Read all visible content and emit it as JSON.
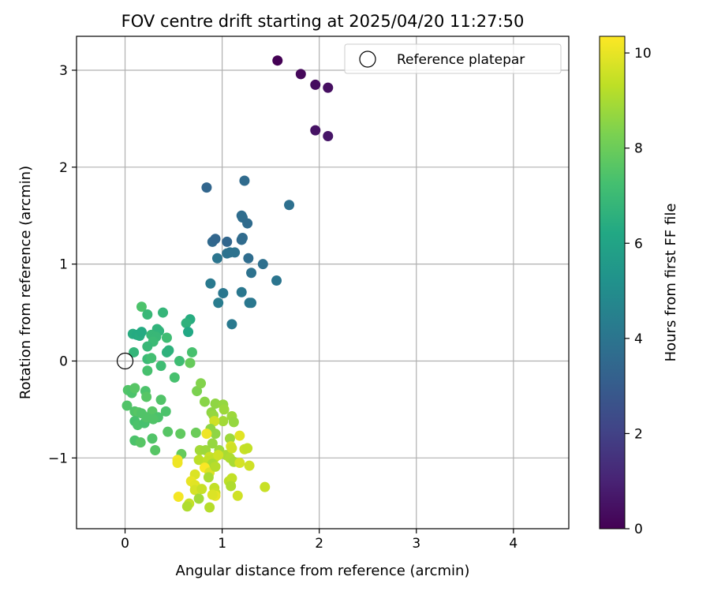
{
  "chart_data": {
    "type": "scatter",
    "title": "FOV centre drift starting at 2025/04/20 11:27:50",
    "xlabel": "Angular distance from reference (arcmin)",
    "ylabel": "Rotation from reference (arcmin)",
    "xlim": [
      -0.5,
      4.57
    ],
    "ylim": [
      -1.73,
      3.35
    ],
    "xticks": [
      0,
      1,
      2,
      3,
      4
    ],
    "yticks": [
      -1,
      0,
      1,
      2,
      3
    ],
    "xtick_labels": [
      "0",
      "1",
      "2",
      "3",
      "4"
    ],
    "ytick_labels": [
      "−1",
      "0",
      "1",
      "2",
      "3"
    ],
    "grid": true,
    "legend": {
      "placement": "top-right",
      "entries": [
        "Reference platepar"
      ]
    },
    "reference_point": {
      "x": 0,
      "y": 0,
      "label": "Reference platepar"
    },
    "colorbar": {
      "label": "Hours from first FF file",
      "colormap": "viridis",
      "range": [
        0,
        10.35
      ],
      "ticks": [
        0,
        2,
        4,
        6,
        8,
        10
      ],
      "tick_labels": [
        "0",
        "2",
        "4",
        "6",
        "8",
        "10"
      ]
    },
    "points": [
      {
        "x": 1.57,
        "y": 3.1,
        "c": 0.0
      },
      {
        "x": 1.81,
        "y": 2.96,
        "c": 0.2
      },
      {
        "x": 1.96,
        "y": 2.85,
        "c": 0.3
      },
      {
        "x": 2.09,
        "y": 2.82,
        "c": 0.4
      },
      {
        "x": 1.96,
        "y": 2.38,
        "c": 0.5
      },
      {
        "x": 2.09,
        "y": 2.32,
        "c": 0.6
      },
      {
        "x": 0.84,
        "y": 1.79,
        "c": 3.4
      },
      {
        "x": 1.23,
        "y": 1.86,
        "c": 3.6
      },
      {
        "x": 1.69,
        "y": 1.61,
        "c": 3.8
      },
      {
        "x": 1.2,
        "y": 1.5,
        "c": 3.7
      },
      {
        "x": 1.21,
        "y": 1.48,
        "c": 3.7
      },
      {
        "x": 1.26,
        "y": 1.42,
        "c": 3.6
      },
      {
        "x": 0.9,
        "y": 1.23,
        "c": 3.5
      },
      {
        "x": 0.93,
        "y": 1.26,
        "c": 3.4
      },
      {
        "x": 1.05,
        "y": 1.23,
        "c": 3.4
      },
      {
        "x": 1.2,
        "y": 1.25,
        "c": 3.6
      },
      {
        "x": 1.21,
        "y": 1.27,
        "c": 3.6
      },
      {
        "x": 0.95,
        "y": 1.06,
        "c": 4.0
      },
      {
        "x": 1.05,
        "y": 1.11,
        "c": 3.9
      },
      {
        "x": 1.08,
        "y": 1.12,
        "c": 3.9
      },
      {
        "x": 1.13,
        "y": 1.12,
        "c": 3.9
      },
      {
        "x": 1.27,
        "y": 1.06,
        "c": 3.7
      },
      {
        "x": 1.42,
        "y": 1.0,
        "c": 3.8
      },
      {
        "x": 1.3,
        "y": 0.91,
        "c": 3.9
      },
      {
        "x": 0.88,
        "y": 0.8,
        "c": 4.2
      },
      {
        "x": 1.01,
        "y": 0.7,
        "c": 4.1
      },
      {
        "x": 1.2,
        "y": 0.71,
        "c": 4.1
      },
      {
        "x": 1.56,
        "y": 0.83,
        "c": 4.0
      },
      {
        "x": 0.96,
        "y": 0.6,
        "c": 4.3
      },
      {
        "x": 1.28,
        "y": 0.6,
        "c": 4.1
      },
      {
        "x": 1.3,
        "y": 0.6,
        "c": 4.1
      },
      {
        "x": 1.1,
        "y": 0.38,
        "c": 4.2
      },
      {
        "x": 0.17,
        "y": 0.56,
        "c": 7.4
      },
      {
        "x": 0.39,
        "y": 0.5,
        "c": 6.8
      },
      {
        "x": 0.23,
        "y": 0.48,
        "c": 6.9
      },
      {
        "x": 0.67,
        "y": 0.43,
        "c": 6.4
      },
      {
        "x": 0.63,
        "y": 0.39,
        "c": 6.6
      },
      {
        "x": 0.33,
        "y": 0.33,
        "c": 6.7
      },
      {
        "x": 0.35,
        "y": 0.31,
        "c": 6.7
      },
      {
        "x": 0.65,
        "y": 0.3,
        "c": 6.2
      },
      {
        "x": 0.08,
        "y": 0.28,
        "c": 6.4
      },
      {
        "x": 0.12,
        "y": 0.27,
        "c": 6.3
      },
      {
        "x": 0.15,
        "y": 0.26,
        "c": 6.4
      },
      {
        "x": 0.17,
        "y": 0.3,
        "c": 6.3
      },
      {
        "x": 0.27,
        "y": 0.27,
        "c": 6.9
      },
      {
        "x": 0.32,
        "y": 0.25,
        "c": 6.9
      },
      {
        "x": 0.29,
        "y": 0.2,
        "c": 7.0
      },
      {
        "x": 0.43,
        "y": 0.24,
        "c": 7.1
      },
      {
        "x": 0.23,
        "y": 0.15,
        "c": 6.9
      },
      {
        "x": 0.43,
        "y": 0.09,
        "c": 6.6
      },
      {
        "x": 0.45,
        "y": 0.11,
        "c": 6.6
      },
      {
        "x": 0.69,
        "y": 0.09,
        "c": 7.3
      },
      {
        "x": 0.09,
        "y": 0.09,
        "c": 6.8
      },
      {
        "x": 0.23,
        "y": 0.02,
        "c": 7.0
      },
      {
        "x": 0.27,
        "y": 0.03,
        "c": 7.2
      },
      {
        "x": 0.56,
        "y": 0.0,
        "c": 7.1
      },
      {
        "x": 0.67,
        "y": -0.02,
        "c": 7.9
      },
      {
        "x": 0.37,
        "y": -0.05,
        "c": 7.1
      },
      {
        "x": 0.23,
        "y": -0.1,
        "c": 7.3
      },
      {
        "x": 0.51,
        "y": -0.17,
        "c": 7.3
      },
      {
        "x": 0.03,
        "y": -0.3,
        "c": 7.5
      },
      {
        "x": 0.07,
        "y": -0.33,
        "c": 7.4
      },
      {
        "x": 0.1,
        "y": -0.28,
        "c": 7.6
      },
      {
        "x": 0.21,
        "y": -0.31,
        "c": 7.4
      },
      {
        "x": 0.22,
        "y": -0.37,
        "c": 7.6
      },
      {
        "x": 0.37,
        "y": -0.4,
        "c": 7.5
      },
      {
        "x": 0.02,
        "y": -0.46,
        "c": 7.5
      },
      {
        "x": 0.1,
        "y": -0.52,
        "c": 7.5
      },
      {
        "x": 0.14,
        "y": -0.53,
        "c": 7.6
      },
      {
        "x": 0.17,
        "y": -0.54,
        "c": 7.5
      },
      {
        "x": 0.28,
        "y": -0.52,
        "c": 7.6
      },
      {
        "x": 0.34,
        "y": -0.58,
        "c": 7.4
      },
      {
        "x": 0.42,
        "y": -0.52,
        "c": 7.4
      },
      {
        "x": 0.1,
        "y": -0.62,
        "c": 7.3
      },
      {
        "x": 0.13,
        "y": -0.66,
        "c": 7.4
      },
      {
        "x": 0.2,
        "y": -0.64,
        "c": 7.3
      },
      {
        "x": 0.22,
        "y": -0.58,
        "c": 7.5
      },
      {
        "x": 0.29,
        "y": -0.6,
        "c": 7.5
      },
      {
        "x": 0.44,
        "y": -0.73,
        "c": 7.6
      },
      {
        "x": 0.1,
        "y": -0.82,
        "c": 7.4
      },
      {
        "x": 0.16,
        "y": -0.84,
        "c": 7.6
      },
      {
        "x": 0.28,
        "y": -0.8,
        "c": 7.5
      },
      {
        "x": 0.31,
        "y": -0.92,
        "c": 7.6
      },
      {
        "x": 0.57,
        "y": -0.75,
        "c": 7.8
      },
      {
        "x": 0.73,
        "y": -0.74,
        "c": 8.0
      },
      {
        "x": 0.58,
        "y": -0.96,
        "c": 7.9
      },
      {
        "x": 0.74,
        "y": -0.31,
        "c": 8.3
      },
      {
        "x": 0.78,
        "y": -0.23,
        "c": 8.4
      },
      {
        "x": 0.82,
        "y": -0.42,
        "c": 8.5
      },
      {
        "x": 0.93,
        "y": -0.44,
        "c": 8.6
      },
      {
        "x": 1.01,
        "y": -0.45,
        "c": 8.7
      },
      {
        "x": 1.02,
        "y": -0.5,
        "c": 8.8
      },
      {
        "x": 0.89,
        "y": -0.53,
        "c": 8.6
      },
      {
        "x": 0.91,
        "y": -0.56,
        "c": 8.7
      },
      {
        "x": 1.1,
        "y": -0.57,
        "c": 8.8
      },
      {
        "x": 1.12,
        "y": -0.63,
        "c": 8.7
      },
      {
        "x": 1.01,
        "y": -0.62,
        "c": 8.9
      },
      {
        "x": 0.92,
        "y": -0.62,
        "c": 9.6
      },
      {
        "x": 0.88,
        "y": -0.7,
        "c": 8.6
      },
      {
        "x": 0.93,
        "y": -0.75,
        "c": 8.6
      },
      {
        "x": 1.08,
        "y": -0.8,
        "c": 8.8
      },
      {
        "x": 1.18,
        "y": -0.77,
        "c": 9.9
      },
      {
        "x": 1.23,
        "y": -0.91,
        "c": 9.5
      },
      {
        "x": 1.26,
        "y": -0.9,
        "c": 9.4
      },
      {
        "x": 0.84,
        "y": -0.75,
        "c": 10.1
      },
      {
        "x": 0.77,
        "y": -0.92,
        "c": 8.9
      },
      {
        "x": 0.83,
        "y": -0.92,
        "c": 8.8
      },
      {
        "x": 0.9,
        "y": -0.85,
        "c": 8.7
      },
      {
        "x": 0.97,
        "y": -0.92,
        "c": 8.8
      },
      {
        "x": 1.04,
        "y": -0.97,
        "c": 9.0
      },
      {
        "x": 1.09,
        "y": -0.88,
        "c": 9.8
      },
      {
        "x": 1.1,
        "y": -0.9,
        "c": 9.6
      },
      {
        "x": 0.87,
        "y": -0.99,
        "c": 9.5
      },
      {
        "x": 0.92,
        "y": -1.0,
        "c": 9.4
      },
      {
        "x": 0.96,
        "y": -0.97,
        "c": 9.6
      },
      {
        "x": 1.08,
        "y": -1.0,
        "c": 9.1
      },
      {
        "x": 1.12,
        "y": -1.04,
        "c": 9.0
      },
      {
        "x": 0.76,
        "y": -1.02,
        "c": 9.3
      },
      {
        "x": 0.85,
        "y": -1.03,
        "c": 9.4
      },
      {
        "x": 0.9,
        "y": -1.06,
        "c": 9.0
      },
      {
        "x": 1.18,
        "y": -1.05,
        "c": 9.7
      },
      {
        "x": 1.28,
        "y": -1.08,
        "c": 9.6
      },
      {
        "x": 0.54,
        "y": -1.02,
        "c": 10.2
      },
      {
        "x": 0.54,
        "y": -1.05,
        "c": 10.1
      },
      {
        "x": 0.82,
        "y": -1.1,
        "c": 10.3
      },
      {
        "x": 0.87,
        "y": -1.15,
        "c": 9.8
      },
      {
        "x": 0.93,
        "y": -1.09,
        "c": 9.2
      },
      {
        "x": 0.86,
        "y": -1.2,
        "c": 9.0
      },
      {
        "x": 0.72,
        "y": -1.17,
        "c": 9.8
      },
      {
        "x": 0.68,
        "y": -1.24,
        "c": 10.0
      },
      {
        "x": 0.72,
        "y": -1.28,
        "c": 9.9
      },
      {
        "x": 0.72,
        "y": -1.33,
        "c": 9.7
      },
      {
        "x": 0.79,
        "y": -1.32,
        "c": 9.5
      },
      {
        "x": 0.92,
        "y": -1.31,
        "c": 9.4
      },
      {
        "x": 0.93,
        "y": -1.36,
        "c": 9.5
      },
      {
        "x": 1.07,
        "y": -1.24,
        "c": 9.3
      },
      {
        "x": 1.1,
        "y": -1.21,
        "c": 9.4
      },
      {
        "x": 1.09,
        "y": -1.29,
        "c": 9.1
      },
      {
        "x": 0.55,
        "y": -1.4,
        "c": 10.2
      },
      {
        "x": 0.93,
        "y": -1.39,
        "c": 10.0
      },
      {
        "x": 0.9,
        "y": -1.38,
        "c": 9.8
      },
      {
        "x": 1.16,
        "y": -1.39,
        "c": 9.6
      },
      {
        "x": 1.44,
        "y": -1.3,
        "c": 9.5
      },
      {
        "x": 0.66,
        "y": -1.47,
        "c": 9.4
      },
      {
        "x": 0.64,
        "y": -1.5,
        "c": 9.1
      },
      {
        "x": 0.76,
        "y": -1.42,
        "c": 8.9
      },
      {
        "x": 0.87,
        "y": -1.51,
        "c": 9.2
      }
    ]
  }
}
